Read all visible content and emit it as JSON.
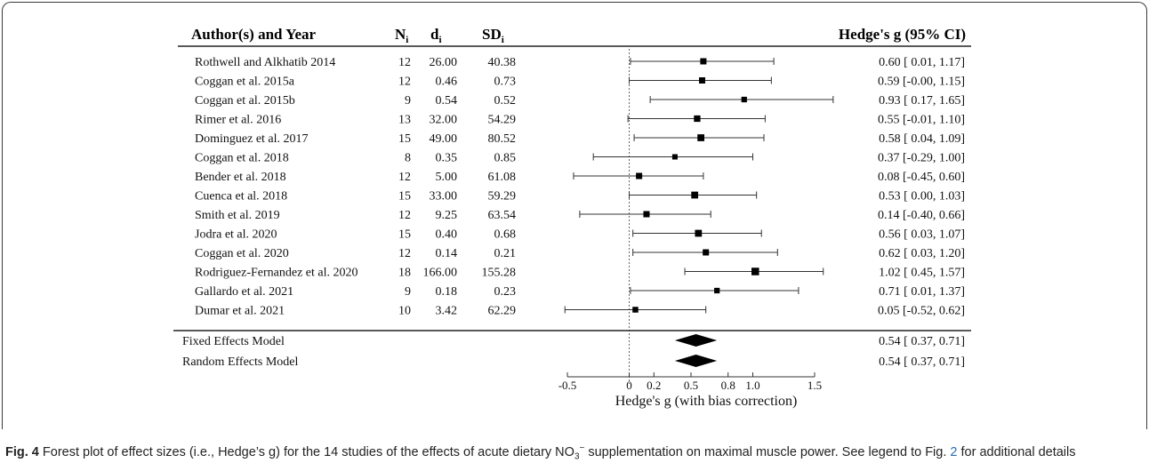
{
  "header": {
    "author_col": "Author(s) and Year",
    "n_col": "N",
    "n_sub": "i",
    "d_col": "d",
    "d_sub": "i",
    "sd_col": "SD",
    "sd_sub": "i",
    "ci_col": "Hedge's g (95% CI)"
  },
  "studies": [
    {
      "author": "Rothwell and Alkhatib 2014",
      "n": "12",
      "d": "26.00",
      "sd": "40.38",
      "ci_text": "0.60 [ 0.01, 1.17]"
    },
    {
      "author": "Coggan et al. 2015a",
      "n": "12",
      "d": "0.46",
      "sd": "0.73",
      "ci_text": "0.59 [-0.00, 1.15]"
    },
    {
      "author": "Coggan et al. 2015b",
      "n": "9",
      "d": "0.54",
      "sd": "0.52",
      "ci_text": "0.93 [ 0.17, 1.65]"
    },
    {
      "author": "Rimer et al. 2016",
      "n": "13",
      "d": "32.00",
      "sd": "54.29",
      "ci_text": "0.55 [-0.01, 1.10]"
    },
    {
      "author": "Dominguez et al. 2017",
      "n": "15",
      "d": "49.00",
      "sd": "80.52",
      "ci_text": "0.58 [ 0.04, 1.09]"
    },
    {
      "author": "Coggan et al. 2018",
      "n": "8",
      "d": "0.35",
      "sd": "0.85",
      "ci_text": "0.37 [-0.29, 1.00]"
    },
    {
      "author": "Bender et al. 2018",
      "n": "12",
      "d": "5.00",
      "sd": "61.08",
      "ci_text": "0.08 [-0.45, 0.60]"
    },
    {
      "author": "Cuenca et al. 2018",
      "n": "15",
      "d": "33.00",
      "sd": "59.29",
      "ci_text": "0.53 [ 0.00, 1.03]"
    },
    {
      "author": "Smith et al. 2019",
      "n": "12",
      "d": "9.25",
      "sd": "63.54",
      "ci_text": "0.14 [-0.40, 0.66]"
    },
    {
      "author": "Jodra et al. 2020",
      "n": "15",
      "d": "0.40",
      "sd": "0.68",
      "ci_text": "0.56 [ 0.03, 1.07]"
    },
    {
      "author": "Coggan et al. 2020",
      "n": "12",
      "d": "0.14",
      "sd": "0.21",
      "ci_text": "0.62 [ 0.03, 1.20]"
    },
    {
      "author": "Rodriguez-Fernandez et al. 2020",
      "n": "18",
      "d": "166.00",
      "sd": "155.28",
      "ci_text": "1.02 [ 0.45, 1.57]"
    },
    {
      "author": "Gallardo et al. 2021",
      "n": "9",
      "d": "0.18",
      "sd": "0.23",
      "ci_text": "0.71 [ 0.01, 1.37]"
    },
    {
      "author": "Dumar et al. 2021",
      "n": "10",
      "d": "3.42",
      "sd": "62.29",
      "ci_text": "0.05 [-0.52, 0.62]"
    }
  ],
  "models": [
    {
      "label": "Fixed Effects Model",
      "ci_text": "0.54 [ 0.37, 0.71]"
    },
    {
      "label": "Random Effects Model",
      "ci_text": "0.54 [ 0.37, 0.71]"
    }
  ],
  "chart_data": {
    "type": "forest",
    "xlabel": "Hedge's g (with bias correction)",
    "xlim": [
      -0.5,
      1.5
    ],
    "ticks": [
      "-0.5",
      "0",
      "0.2",
      "0.5",
      "0.8",
      "1.0",
      "1.5"
    ],
    "tick_values": [
      -0.5,
      0,
      0.2,
      0.5,
      0.8,
      1.0,
      1.5
    ],
    "reference_line": 0,
    "estimates": [
      {
        "g": 0.6,
        "lo": 0.01,
        "hi": 1.17,
        "weight": 12
      },
      {
        "g": 0.59,
        "lo": -0.0,
        "hi": 1.15,
        "weight": 12
      },
      {
        "g": 0.93,
        "lo": 0.17,
        "hi": 1.65,
        "weight": 9
      },
      {
        "g": 0.55,
        "lo": -0.01,
        "hi": 1.1,
        "weight": 13
      },
      {
        "g": 0.58,
        "lo": 0.04,
        "hi": 1.09,
        "weight": 15
      },
      {
        "g": 0.37,
        "lo": -0.29,
        "hi": 1.0,
        "weight": 8
      },
      {
        "g": 0.08,
        "lo": -0.45,
        "hi": 0.6,
        "weight": 12
      },
      {
        "g": 0.53,
        "lo": 0.0,
        "hi": 1.03,
        "weight": 15
      },
      {
        "g": 0.14,
        "lo": -0.4,
        "hi": 0.66,
        "weight": 12
      },
      {
        "g": 0.56,
        "lo": 0.03,
        "hi": 1.07,
        "weight": 15
      },
      {
        "g": 0.62,
        "lo": 0.03,
        "hi": 1.2,
        "weight": 12
      },
      {
        "g": 1.02,
        "lo": 0.45,
        "hi": 1.57,
        "weight": 18
      },
      {
        "g": 0.71,
        "lo": 0.01,
        "hi": 1.37,
        "weight": 9
      },
      {
        "g": 0.05,
        "lo": -0.52,
        "hi": 0.62,
        "weight": 10
      }
    ],
    "summary": [
      {
        "g": 0.54,
        "lo": 0.37,
        "hi": 0.71
      },
      {
        "g": 0.54,
        "lo": 0.37,
        "hi": 0.71
      }
    ]
  },
  "caption": {
    "fig_label": "Fig. 4",
    "text_before_ref": " Forest plot of effect sizes (i.e., Hedge’s g) for the 14 studies of the effects of acute dietary NO",
    "no3_sub": "3",
    "no3_sup": "−",
    "text_after_no3": " supplementation on maximal muscle power. See legend to Fig. ",
    "fig_ref": "2",
    "text_end": " for additional details"
  }
}
